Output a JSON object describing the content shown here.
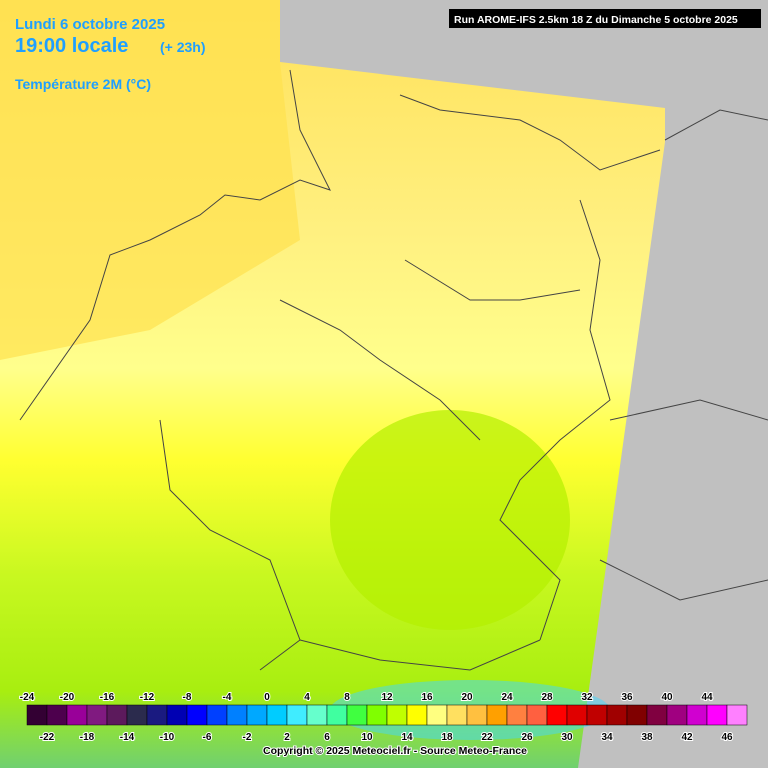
{
  "header": {
    "date": "Lundi 6 octobre 2025",
    "time": "19:00 locale",
    "lead": "(+ 23h)",
    "parameter": "Température 2M (°C)",
    "run": "Run AROME-IFS 2.5km 18 Z du Dimanche 5 octobre 2025"
  },
  "legend": {
    "values": [
      -24,
      -22,
      -20,
      -18,
      -16,
      -14,
      -12,
      -10,
      -8,
      -6,
      -4,
      -2,
      0,
      2,
      4,
      6,
      8,
      10,
      12,
      14,
      16,
      18,
      20,
      22,
      24,
      26,
      28,
      30,
      32,
      34,
      36,
      38,
      40,
      42,
      44,
      46
    ],
    "colors": [
      "#330033",
      "#4d004d",
      "#990099",
      "#801a80",
      "#5c1a5c",
      "#2b2b4d",
      "#1a1a80",
      "#0000b3",
      "#0000ff",
      "#0040ff",
      "#0080ff",
      "#00a8ff",
      "#00ccff",
      "#40ecff",
      "#66ffcc",
      "#40ffa0",
      "#40ff40",
      "#80ff00",
      "#c0ff00",
      "#ffff00",
      "#ffff80",
      "#ffe060",
      "#ffc040",
      "#ffa000",
      "#ff8040",
      "#ff6040",
      "#ff0000",
      "#e00000",
      "#c00000",
      "#a00000",
      "#800000",
      "#800040",
      "#a00080",
      "#d000d0",
      "#ff00ff",
      "#ff80ff"
    ]
  },
  "footer": {
    "copyright": "Copyright © 2025 Meteociel.fr - Source Meteo-France"
  }
}
